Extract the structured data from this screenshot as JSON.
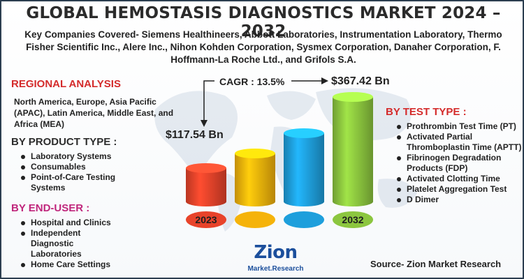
{
  "title": "GLOBAL HEMOSTASIS DIAGNOSTICS MARKET 2024 – 2032",
  "subtitle": "Key Companies Covered- Siemens Healthineers, Abbott Laboratories, Instrumentation Laboratory, Thermo Fisher Scientific Inc., Alere Inc., Nihon Kohden Corporation, Sysmex Corporation, Danaher Corporation, F. Hoffmann-La Roche Ltd., and Grifols S.A.",
  "regional": {
    "heading": "REGIONAL ANALYSIS",
    "text": "North America, Europe, Asia Pacific (APAC), Latin America, Middle East, and Africa (MEA)"
  },
  "product_type": {
    "heading": "BY PRODUCT TYPE :",
    "items": [
      "Laboratory Systems",
      "Consumables",
      "Point-of-Care Testing Systems"
    ]
  },
  "end_user": {
    "heading": "BY END-USER :",
    "items": [
      "Hospital and Clinics",
      "Independent Diagnostic Laboratories",
      "Home Care Settings"
    ]
  },
  "test_type": {
    "heading": "BY TEST TYPE :",
    "items": [
      "Prothrombin Test Time (PT)",
      "Activated Partial Thromboplastin Time (APTT)",
      "Fibrinogen Degradation Products (FDP)",
      "Activated Clotting Time",
      "Platelet Aggregation Test",
      "D Dimer"
    ]
  },
  "market": {
    "cagr": "CAGR : 13.5%",
    "value_2023": "$117.54 Bn",
    "value_2032": "$367.42 Bn"
  },
  "chart_data": {
    "type": "bar",
    "categories": [
      "2023",
      "",
      "",
      "2032"
    ],
    "values": [
      117.54,
      168,
      240,
      367.42
    ],
    "labels": [
      "2023",
      "",
      "",
      "2032"
    ],
    "colors": [
      "#e8432a",
      "#f5b30a",
      "#1e9fdc",
      "#8cc63f"
    ]
  },
  "logo": {
    "main": "Zion",
    "sub": "Market.Research"
  },
  "source": "Source- Zion Market Research"
}
